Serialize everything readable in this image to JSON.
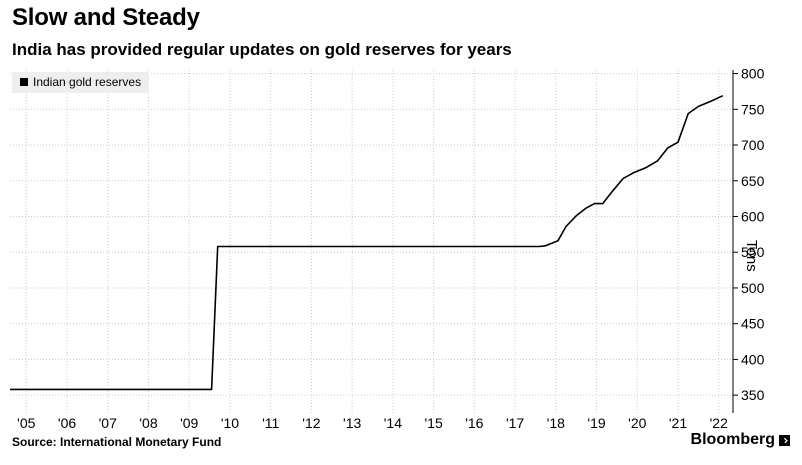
{
  "header": {
    "title": "Slow and Steady",
    "subtitle": "India has provided regular updates on gold reserves for years"
  },
  "footer": {
    "source": "Source: International Monetary Fund",
    "brand": "Bloomberg"
  },
  "colors": {
    "line": "#000000",
    "grid": "#cccccc",
    "legend_bg": "#eeeeee"
  },
  "chart_data": {
    "type": "line",
    "title": "Slow and Steady",
    "subtitle": "India has provided regular updates on gold reserves for years",
    "xlabel": "",
    "ylabel": "Tons",
    "ylim": [
      325,
      805
    ],
    "xlim": [
      2004.8,
      2022.55
    ],
    "y_ticks": [
      350,
      400,
      450,
      500,
      550,
      600,
      650,
      700,
      750,
      800
    ],
    "x_ticks": [
      {
        "label": "'05",
        "x": 2005.2
      },
      {
        "label": "'06",
        "x": 2006.2
      },
      {
        "label": "'07",
        "x": 2007.2
      },
      {
        "label": "'08",
        "x": 2008.2
      },
      {
        "label": "'09",
        "x": 2009.2
      },
      {
        "label": "'10",
        "x": 2010.2
      },
      {
        "label": "'11",
        "x": 2011.2
      },
      {
        "label": "'12",
        "x": 2012.2
      },
      {
        "label": "'13",
        "x": 2013.2
      },
      {
        "label": "'14",
        "x": 2014.2
      },
      {
        "label": "'15",
        "x": 2015.2
      },
      {
        "label": "'16",
        "x": 2016.2
      },
      {
        "label": "'17",
        "x": 2017.2
      },
      {
        "label": "'18",
        "x": 2018.2
      },
      {
        "label": "'19",
        "x": 2019.2
      },
      {
        "label": "'20",
        "x": 2020.2
      },
      {
        "label": "'21",
        "x": 2021.2
      },
      {
        "label": "'22",
        "x": 2022.2
      }
    ],
    "grid": true,
    "y_axis_position": "right",
    "legend_position": "top-left",
    "series": [
      {
        "name": "Indian gold reserves",
        "x": [
          2004.8,
          2009.75,
          2009.9,
          2017.8,
          2017.95,
          2018.25,
          2018.45,
          2018.7,
          2018.95,
          2019.15,
          2019.35,
          2019.6,
          2019.85,
          2020.1,
          2020.4,
          2020.7,
          2020.95,
          2021.2,
          2021.45,
          2021.7,
          2022.0,
          2022.3
        ],
        "values": [
          358,
          358,
          558,
          558,
          559,
          566,
          586,
          601,
          612,
          618,
          618,
          636,
          653,
          661,
          668,
          678,
          696,
          704,
          744,
          754,
          761,
          769
        ]
      }
    ]
  }
}
